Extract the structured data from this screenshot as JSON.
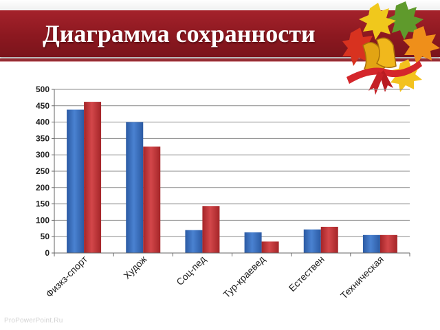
{
  "title": "Диаграмма сохранности",
  "watermark": "ProPowerPoint.Ru",
  "decoration": "autumn-leaves-and-bells",
  "colors": {
    "title_band": "#8c1820",
    "title_text": "#ffffff",
    "series_blue": "#3a6fbf",
    "series_red": "#c0383a",
    "grid": "#888888"
  },
  "chart_data": {
    "type": "bar",
    "categories": [
      "Физкз-спорт",
      "Худож",
      "Соц-пед",
      "Тур-краевед",
      "Естествен",
      "Техническая"
    ],
    "series": [
      {
        "values": [
          438,
          400,
          70,
          63,
          72,
          55
        ],
        "color": "#3a6fbf"
      },
      {
        "values": [
          462,
          325,
          143,
          35,
          80,
          55
        ],
        "color": "#c0383a"
      }
    ],
    "ylim": [
      0,
      500
    ],
    "yticks": [
      0,
      50,
      100,
      150,
      200,
      250,
      300,
      350,
      400,
      450,
      500
    ],
    "grid": true,
    "legend": "none",
    "xlabel": "",
    "ylabel": ""
  }
}
